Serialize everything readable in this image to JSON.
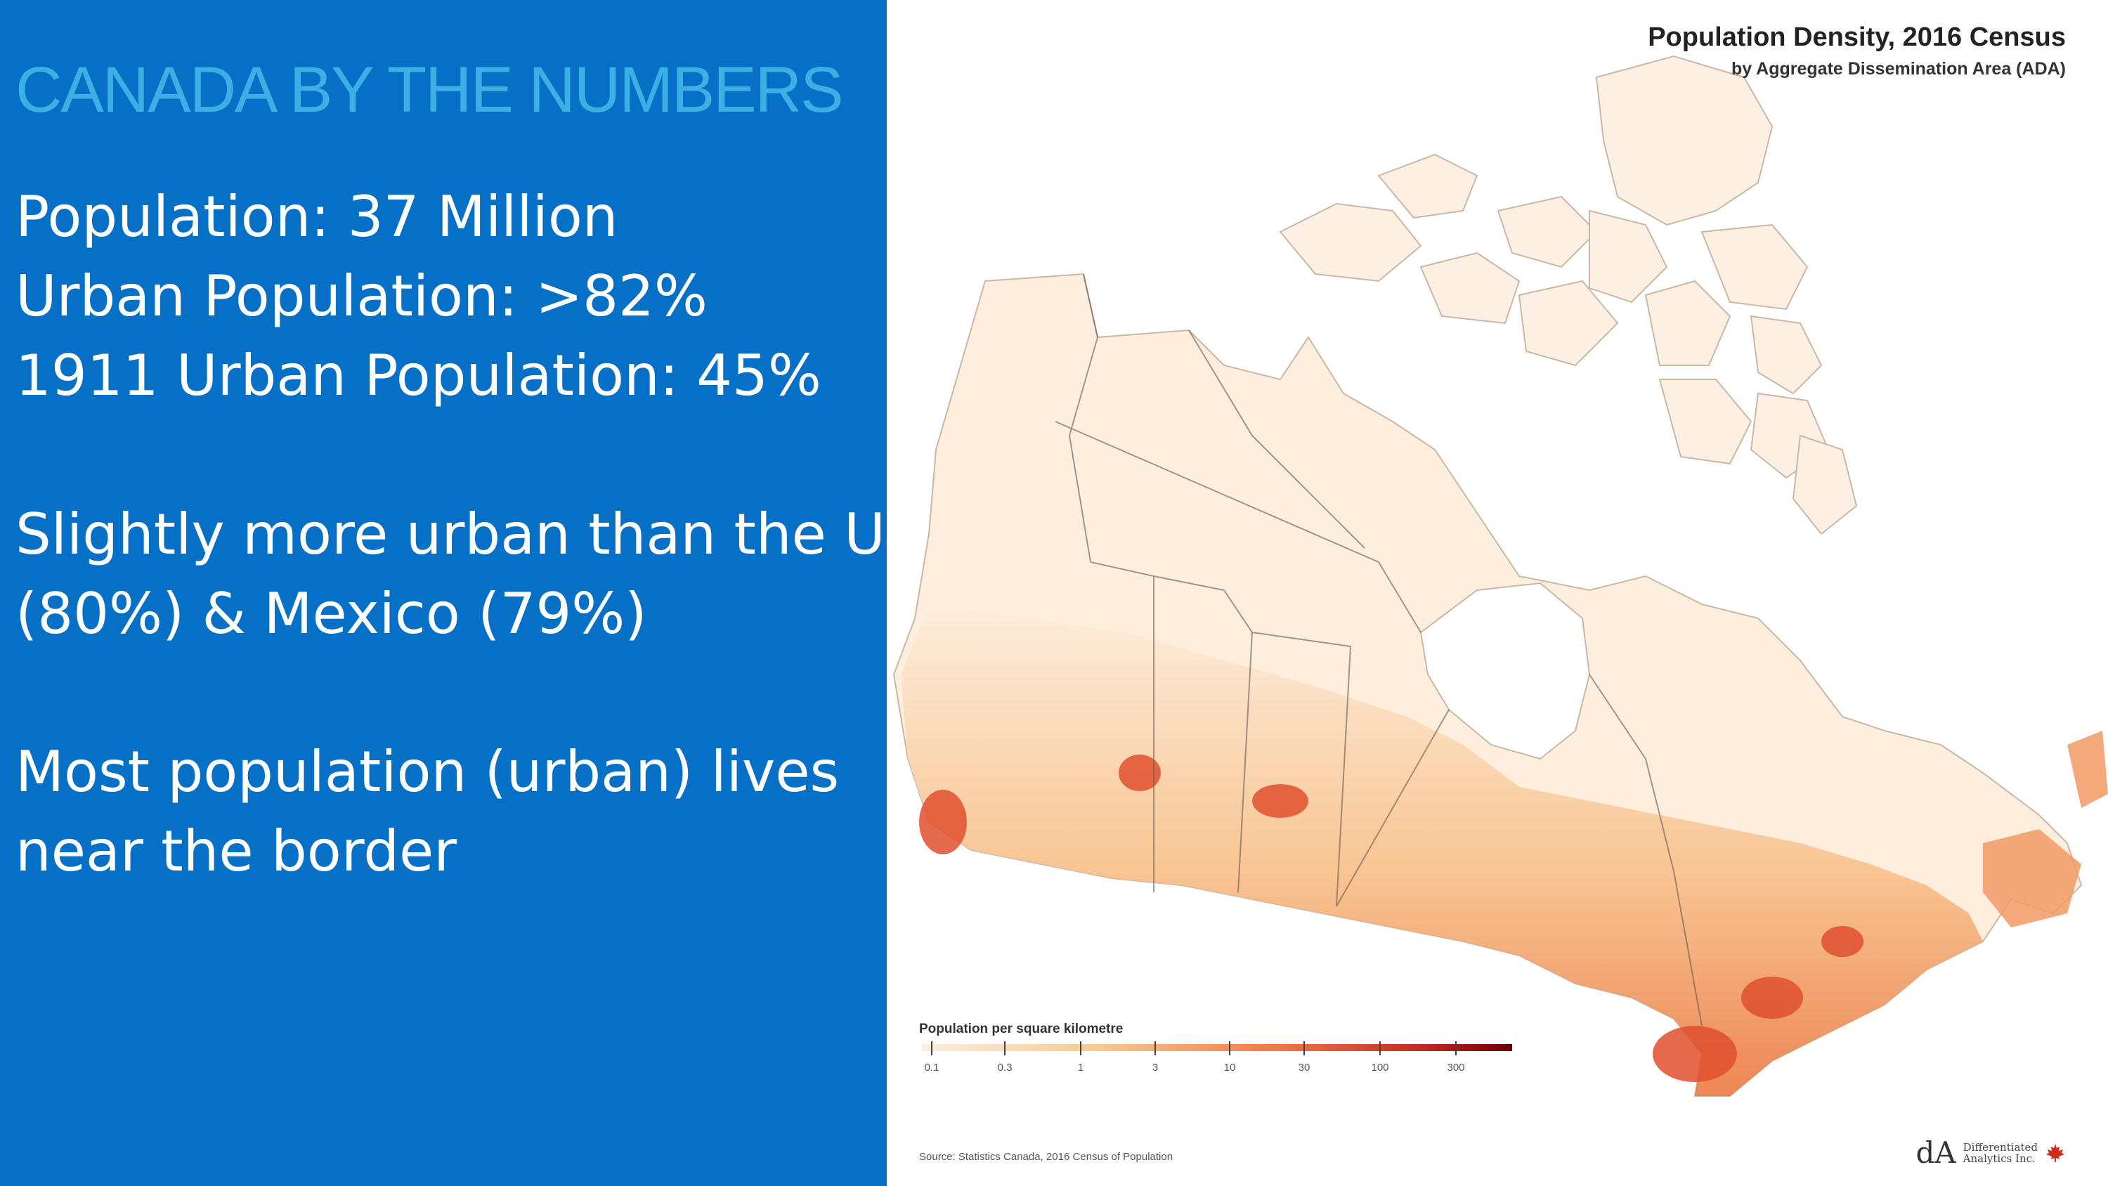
{
  "slide": {
    "title": "CANADA BY THE NUMBERS",
    "lines": [
      "Population: 37 Million",
      "Urban Population: >82%",
      "1911 Urban Population: 45%",
      "Slightly more urban than the US",
      "(80%) & Mexico (79%)",
      "Most population (urban) lives",
      "near the border"
    ]
  },
  "map": {
    "title": "Population Density, 2016 Census",
    "subtitle": "by Aggregate Dissemination Area (ADA)",
    "legend": {
      "title": "Population per square kilometre",
      "ticks": [
        "0.1",
        "0.3",
        "1",
        "3",
        "10",
        "30",
        "100",
        "300"
      ]
    },
    "source": "Source: Statistics Canada, 2016 Census of Population",
    "logo": {
      "mark": "dA",
      "line1": "Differentiated",
      "line2": "Analytics Inc."
    }
  },
  "colors": {
    "panel_blue": "#0670c6",
    "title_cyan": "#3cb0e4",
    "density_low": "#fdeedd",
    "density_high": "#8b0000"
  }
}
